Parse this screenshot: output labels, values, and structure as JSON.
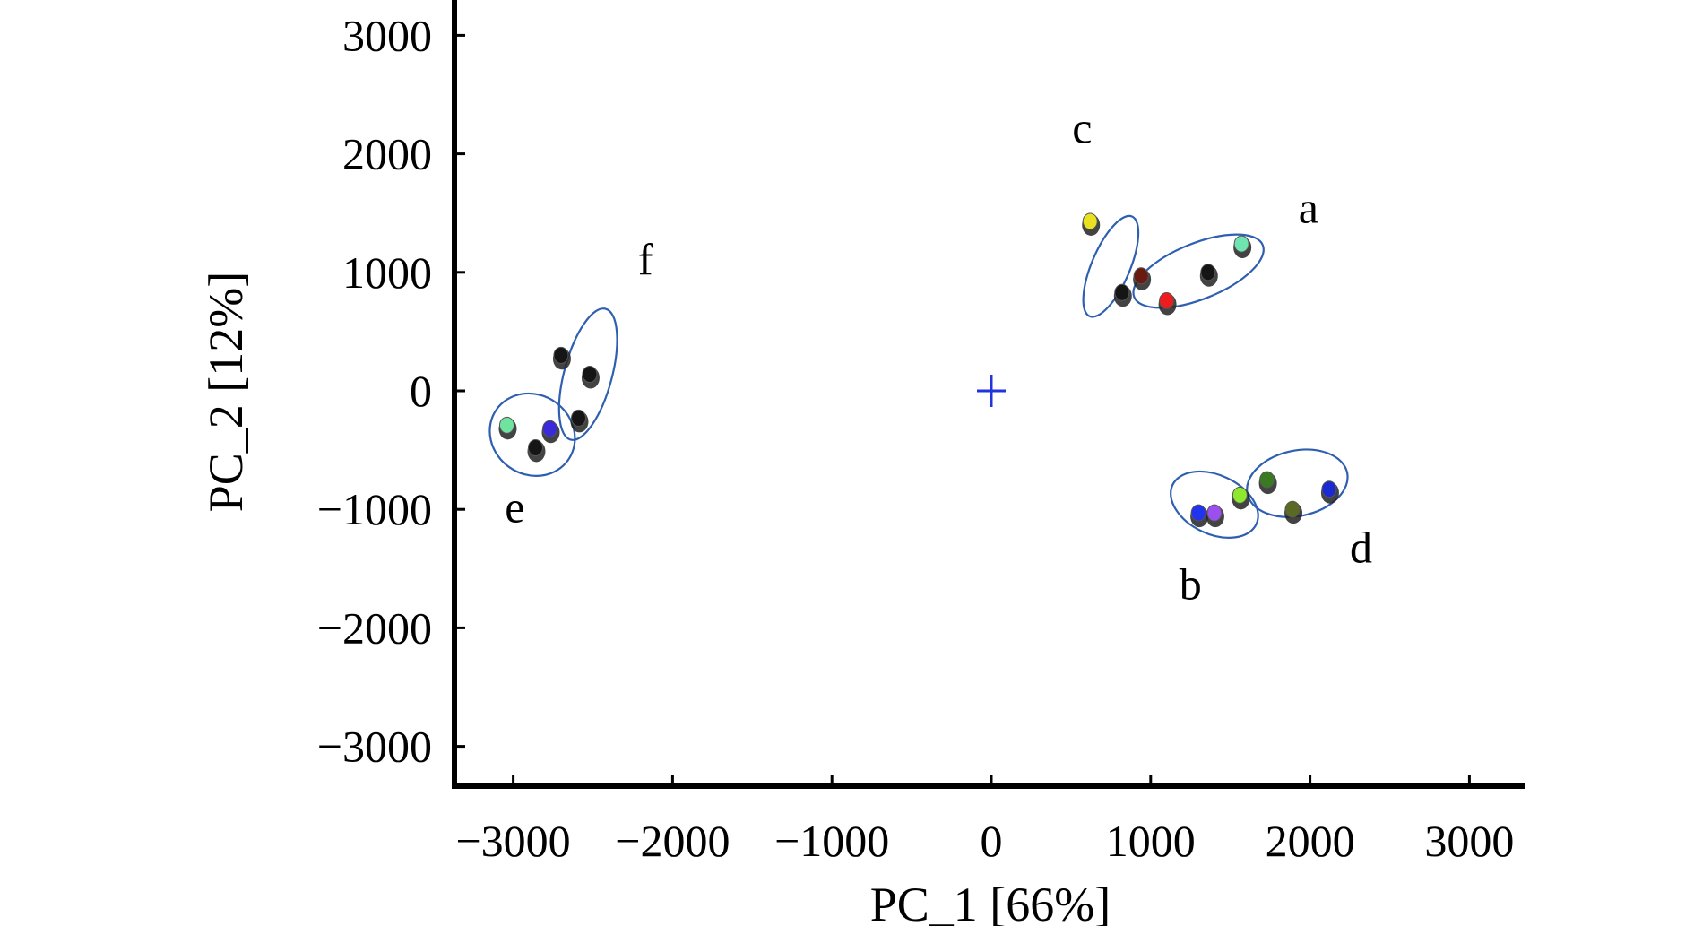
{
  "chart_data": {
    "type": "scatter",
    "title": "",
    "xlabel": "PC_1 [66%]",
    "ylabel": "PC_2 [12%]",
    "xlim": [
      -3400,
      3400
    ],
    "ylim": [
      -3400,
      3300
    ],
    "x_ticks": [
      -3000,
      -2000,
      -1000,
      0,
      1000,
      2000,
      3000
    ],
    "y_ticks": [
      3000,
      2000,
      1000,
      0,
      -1000,
      -2000,
      -3000
    ],
    "x_tick_labels": [
      "−3000",
      "−2000",
      "−1000",
      "0",
      "1000",
      "2000",
      "3000"
    ],
    "y_tick_labels": [
      "3000",
      "2000",
      "1000",
      "0",
      "−1000",
      "−2000",
      "−3000"
    ],
    "grid": false,
    "origin_marker": {
      "x": 0,
      "y": 0,
      "color": "#2233dd"
    },
    "points": [
      {
        "x": 620,
        "y": 1430,
        "color": "#e8e020"
      },
      {
        "x": 820,
        "y": 830,
        "color": "#151515"
      },
      {
        "x": 940,
        "y": 970,
        "color": "#6a1a10"
      },
      {
        "x": 1100,
        "y": 760,
        "color": "#ee1c1c"
      },
      {
        "x": 1360,
        "y": 1000,
        "color": "#151515"
      },
      {
        "x": 1570,
        "y": 1240,
        "color": "#6fe3b0"
      },
      {
        "x": 1300,
        "y": -1030,
        "color": "#2233ee"
      },
      {
        "x": 1400,
        "y": -1030,
        "color": "#9b4fee"
      },
      {
        "x": 1560,
        "y": -880,
        "color": "#8de82e"
      },
      {
        "x": 1730,
        "y": -750,
        "color": "#3a7a22"
      },
      {
        "x": 1890,
        "y": -1000,
        "color": "#5a6a22"
      },
      {
        "x": 2120,
        "y": -830,
        "color": "#1a2ad0"
      },
      {
        "x": -3040,
        "y": -290,
        "color": "#6fe3a0"
      },
      {
        "x": -2860,
        "y": -480,
        "color": "#151515"
      },
      {
        "x": -2770,
        "y": -320,
        "color": "#3a2ad8"
      },
      {
        "x": -2700,
        "y": 300,
        "color": "#151515"
      },
      {
        "x": -2520,
        "y": 140,
        "color": "#151515"
      },
      {
        "x": -2590,
        "y": -230,
        "color": "#151515"
      }
    ],
    "groups": [
      {
        "label": "a",
        "cx": 1300,
        "cy": 1010,
        "rx": 870,
        "ry": 350,
        "angle": -22,
        "label_x": 1990,
        "label_y": 1420
      },
      {
        "label": "c",
        "cx": 750,
        "cy": 1050,
        "rx": 680,
        "ry": 240,
        "angle": -67,
        "label_x": 570,
        "label_y": 2090
      },
      {
        "label": "b",
        "cx": 1400,
        "cy": -960,
        "rx": 580,
        "ry": 370,
        "angle": 25,
        "label_x": 1250,
        "label_y": -1760
      },
      {
        "label": "d",
        "cx": 1920,
        "cy": -780,
        "rx": 640,
        "ry": 410,
        "angle": -12,
        "label_x": 2320,
        "label_y": -1450
      },
      {
        "label": "e",
        "cx": -2880,
        "cy": -370,
        "rx": 550,
        "ry": 500,
        "angle": 35,
        "label_x": -2990,
        "label_y": -1110
      },
      {
        "label": "f",
        "cx": -2530,
        "cy": 140,
        "rx": 850,
        "ry": 300,
        "angle": -75,
        "label_x": -2170,
        "label_y": 980
      }
    ]
  }
}
